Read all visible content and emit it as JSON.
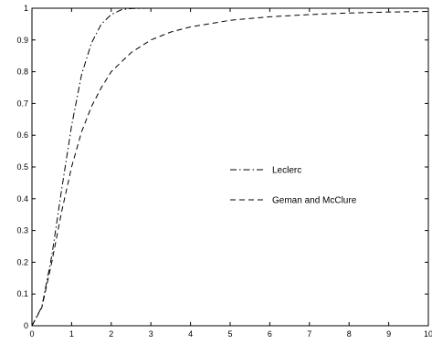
{
  "chart_data": {
    "type": "line",
    "title": "",
    "xlabel": "",
    "ylabel": "",
    "xlim": [
      0,
      10
    ],
    "ylim": [
      0,
      1
    ],
    "xticks": [
      "0",
      "1",
      "2",
      "3",
      "4",
      "5",
      "6",
      "7",
      "8",
      "9",
      "10"
    ],
    "yticks": [
      "0",
      "0.1",
      "0.2",
      "0.3",
      "0.4",
      "0.5",
      "0.6",
      "0.7",
      "0.8",
      "0.9",
      "1"
    ],
    "grid": false,
    "legend_position": "center-right",
    "series": [
      {
        "name": "Leclerc",
        "line_style": "dash-dot",
        "color": "#000000",
        "x": [
          0,
          0.25,
          0.5,
          0.75,
          1.0,
          1.25,
          1.5,
          1.75,
          2.0,
          2.25,
          2.5,
          3,
          4,
          5,
          6,
          7,
          8,
          9,
          10
        ],
        "y": [
          0,
          0.06,
          0.22,
          0.43,
          0.63,
          0.79,
          0.89,
          0.95,
          0.98,
          0.995,
          0.999,
          1,
          1,
          1,
          1,
          1,
          1,
          1,
          1
        ]
      },
      {
        "name": "Geman and McClure",
        "line_style": "dashed",
        "color": "#000000",
        "x": [
          0,
          0.25,
          0.5,
          0.75,
          1.0,
          1.25,
          1.5,
          1.75,
          2.0,
          2.5,
          3,
          3.5,
          4,
          5,
          6,
          7,
          8,
          9,
          10
        ],
        "y": [
          0,
          0.058,
          0.2,
          0.36,
          0.5,
          0.61,
          0.69,
          0.75,
          0.8,
          0.86,
          0.9,
          0.925,
          0.941,
          0.962,
          0.973,
          0.98,
          0.985,
          0.988,
          0.99
        ]
      }
    ]
  }
}
